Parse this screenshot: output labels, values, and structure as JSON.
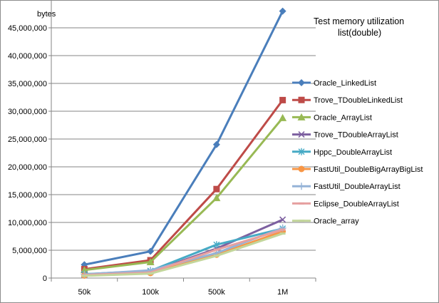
{
  "chart_data": {
    "type": "line",
    "title": "Test  memory utilization",
    "subtitle": "list(double)",
    "ylabel": "bytes",
    "xlabel": "",
    "categories": [
      "50k",
      "100k",
      "500k",
      "1M"
    ],
    "ylim": [
      0,
      50000000
    ],
    "yticks": [
      0,
      5000000,
      10000000,
      15000000,
      20000000,
      25000000,
      30000000,
      35000000,
      40000000,
      45000000
    ],
    "ytick_labels": [
      "0",
      "5,000,000",
      "10,000,000",
      "15,000,000",
      "20,000,000",
      "25,000,000",
      "30,000,000",
      "35,000,000",
      "40,000,000",
      "45,000,000"
    ],
    "grid": "horizontal",
    "legend_position": "right",
    "series": [
      {
        "name": "Oracle_LinkedList",
        "color": "#4a7ebb",
        "marker": "diamond",
        "values": [
          2400000,
          4800000,
          24000000,
          48000000
        ]
      },
      {
        "name": "Trove_TDoubleLinkedList",
        "color": "#be4b48",
        "marker": "square",
        "values": [
          1600000,
          3200000,
          16000000,
          32000000
        ]
      },
      {
        "name": "Oracle_ArrayList",
        "color": "#98b954",
        "marker": "triangle",
        "values": [
          1440000,
          2880000,
          14400000,
          28800000
        ]
      },
      {
        "name": "Trove_TDoubleArrayList",
        "color": "#7d60a0",
        "marker": "x",
        "values": [
          600000,
          1100000,
          5300000,
          10500000
        ]
      },
      {
        "name": "Hppc_DoubleArrayList",
        "color": "#46aac5",
        "marker": "star",
        "values": [
          700000,
          1300000,
          6000000,
          8900000
        ]
      },
      {
        "name": "FastUtil_DoubleBigArrayBigList",
        "color": "#f79646",
        "marker": "circle",
        "values": [
          450000,
          900000,
          4200000,
          8400000
        ]
      },
      {
        "name": "FastUtil_DoubleArrayList",
        "color": "#95b3d7",
        "marker": "plus",
        "values": [
          650000,
          1400000,
          4500000,
          9000000
        ]
      },
      {
        "name": "Eclipse_DoubleArrayList",
        "color": "#e6a0a0",
        "marker": "dash",
        "values": [
          550000,
          1000000,
          5100000,
          8700000
        ]
      },
      {
        "name": "Oracle_array",
        "color": "#c3d69b",
        "marker": "dash",
        "values": [
          400000,
          800000,
          4000000,
          8000000
        ]
      }
    ]
  }
}
